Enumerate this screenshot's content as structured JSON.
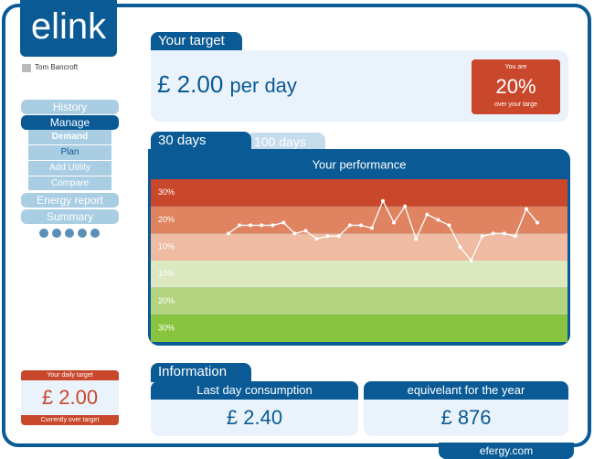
{
  "logo": "elink",
  "user": "Tom Bancroft",
  "nav": {
    "history": "History",
    "manage": "Manage",
    "submenu": [
      "Demand",
      "Plan",
      "Add Utility",
      "Compare"
    ],
    "energy_report": "Energy report",
    "summary": "Summary"
  },
  "daily_target": {
    "title": "Your daily target",
    "value": "£ 2.00",
    "status": "Currently over target"
  },
  "target": {
    "title": "Your target",
    "value": "£ 2.00",
    "unit": "per day",
    "badge_top": "You are",
    "badge_value": "20%",
    "badge_bottom": "over your targe"
  },
  "tabs": [
    "30 days",
    "100 days"
  ],
  "chart_data": {
    "type": "line",
    "title": "Your performance",
    "values": [
      10,
      13,
      13,
      13,
      13,
      14,
      10,
      11,
      8,
      9,
      9,
      13,
      13,
      12,
      22,
      14,
      20,
      8,
      17,
      15,
      13,
      5,
      0,
      9,
      10,
      10,
      9,
      19,
      14
    ],
    "ylim": [
      -30,
      30
    ],
    "band_labels": [
      "30%",
      "20%",
      "10%",
      "10%",
      "20%",
      "30%"
    ],
    "band_colors": [
      "#c9472a",
      "#df8361",
      "#efbba2",
      "#dbe8c0",
      "#b4d57f",
      "#88c43e"
    ],
    "color": "#ffffff"
  },
  "information": {
    "title": "Information",
    "last_day_title": "Last day consumption",
    "last_day_value": "£ 2.40",
    "year_title": "equivelant for the year",
    "year_value": "£ 876"
  },
  "footer": "efergy.com"
}
